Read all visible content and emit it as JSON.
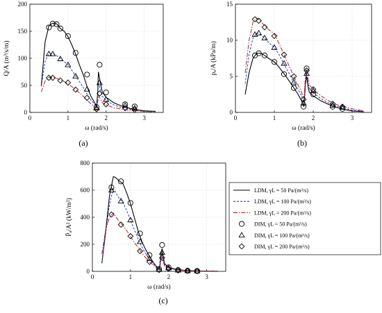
{
  "chart_data": [
    {
      "type": "line",
      "panel_label": "(a)",
      "xlabel": "ω (rad/s)",
      "ylabel": "Q/A (m³/s/m)",
      "xlim": [
        0,
        3.5
      ],
      "ylim": [
        0,
        200
      ],
      "xticks": [
        "0",
        "1",
        "2",
        "3"
      ],
      "yticks": [
        "0",
        "50",
        "100",
        "150",
        "200"
      ],
      "xtick_values": [
        0,
        1,
        2,
        3
      ],
      "ytick_values": [
        0,
        50,
        100,
        150,
        200
      ],
      "grid": "dotted",
      "series": [
        {
          "name": "LDM, γL = 50 Pa/(m³/s)",
          "style": "solid",
          "color": "#000000",
          "marker": "none",
          "x": [
            0.3,
            0.4,
            0.5,
            0.6,
            0.7,
            0.8,
            0.9,
            1.0,
            1.1,
            1.2,
            1.3,
            1.4,
            1.5,
            1.6,
            1.7,
            1.75,
            1.78,
            1.8,
            1.85,
            1.9,
            2.0,
            2.2,
            2.4,
            2.6,
            2.8,
            3.0,
            3.3
          ],
          "y": [
            50,
            130,
            160,
            165,
            164,
            155,
            150,
            140,
            125,
            108,
            88,
            70,
            48,
            30,
            18,
            12,
            35,
            75,
            55,
            38,
            28,
            18,
            12,
            8,
            5,
            3,
            2
          ]
        },
        {
          "name": "LDM, γL = 100 Pa/(m³/s)",
          "style": "dashed",
          "color": "#1f3fbf",
          "marker": "none",
          "x": [
            0.3,
            0.4,
            0.5,
            0.6,
            0.7,
            0.8,
            0.9,
            1.0,
            1.1,
            1.2,
            1.3,
            1.4,
            1.5,
            1.6,
            1.7,
            1.75,
            1.78,
            1.8,
            1.85,
            1.9,
            2.0,
            2.2,
            2.4,
            2.6,
            2.8,
            3.0,
            3.3
          ],
          "y": [
            48,
            95,
            108,
            109,
            105,
            100,
            94,
            88,
            78,
            68,
            57,
            46,
            34,
            23,
            15,
            10,
            30,
            55,
            42,
            30,
            22,
            14,
            9,
            6,
            4,
            2,
            1
          ]
        },
        {
          "name": "LDM, γL = 200 Pa/(m³/s)",
          "style": "dashdot",
          "color": "#b02020",
          "marker": "none",
          "x": [
            0.3,
            0.4,
            0.5,
            0.6,
            0.7,
            0.8,
            0.9,
            1.0,
            1.1,
            1.2,
            1.3,
            1.4,
            1.5,
            1.6,
            1.7,
            1.75,
            1.78,
            1.8,
            1.85,
            1.9,
            2.0,
            2.2,
            2.4,
            2.6,
            2.8,
            3.0,
            3.3
          ],
          "y": [
            38,
            58,
            65,
            65,
            63,
            60,
            57,
            53,
            48,
            42,
            36,
            30,
            23,
            16,
            11,
            8,
            18,
            32,
            25,
            18,
            14,
            9,
            6,
            4,
            3,
            2,
            1
          ]
        },
        {
          "name": "DIM, γL = 50 Pa/(m³/s)",
          "style": "none",
          "color": "#000000",
          "marker": "circle",
          "x": [
            0.5,
            0.6,
            0.7,
            0.8,
            1.0,
            1.2,
            1.5,
            1.75,
            1.83,
            2.0,
            2.5,
            2.75
          ],
          "y": [
            157,
            164,
            163,
            155,
            141,
            110,
            70,
            10,
            88,
            37,
            15,
            11
          ]
        },
        {
          "name": "DIM, γL = 100 Pa/(m³/s)",
          "style": "none",
          "color": "#000000",
          "marker": "triangle",
          "x": [
            0.5,
            0.6,
            0.8,
            1.0,
            1.2,
            1.5,
            1.75,
            1.83,
            2.0,
            2.5,
            2.75
          ],
          "y": [
            108,
            108,
            99,
            88,
            67,
            43,
            8,
            55,
            24,
            13,
            8
          ]
        },
        {
          "name": "DIM, γL = 200 Pa/(m³/s)",
          "style": "none",
          "color": "#000000",
          "marker": "diamond",
          "x": [
            0.5,
            0.6,
            0.8,
            1.0,
            1.2,
            1.5,
            1.75,
            1.83,
            2.0,
            2.5,
            2.75
          ],
          "y": [
            64,
            64,
            59,
            55,
            42,
            27,
            6,
            35,
            15,
            8,
            5
          ]
        }
      ]
    },
    {
      "type": "line",
      "panel_label": "(b)",
      "xlabel": "ω (rad/s)",
      "ylabel": "pₐ/A (kPa/m)",
      "xlim": [
        0,
        3.5
      ],
      "ylim": [
        0,
        15
      ],
      "xticks": [
        "0",
        "1",
        "2",
        "3"
      ],
      "yticks": [
        "0",
        "5",
        "10",
        "15"
      ],
      "xtick_values": [
        0,
        1,
        2,
        3
      ],
      "ytick_values": [
        0,
        5,
        10,
        15
      ],
      "grid": "dotted",
      "series": [
        {
          "name": "LDM, γL = 50 Pa/(m³/s)",
          "style": "solid",
          "color": "#000000",
          "marker": "none",
          "x": [
            0.25,
            0.35,
            0.45,
            0.55,
            0.65,
            0.75,
            0.85,
            1.0,
            1.1,
            1.2,
            1.3,
            1.4,
            1.5,
            1.6,
            1.7,
            1.76,
            1.8,
            1.83,
            1.87,
            1.9,
            2.0,
            2.2,
            2.4,
            2.6,
            2.8,
            3.0,
            3.3
          ],
          "y": [
            2.5,
            5.5,
            7.5,
            8.2,
            8.2,
            7.9,
            7.5,
            7.0,
            6.4,
            5.7,
            5.0,
            4.2,
            3.4,
            2.6,
            1.6,
            0.8,
            4.0,
            5.0,
            3.5,
            2.8,
            2.3,
            1.6,
            1.1,
            0.7,
            0.4,
            0.2,
            0.1
          ]
        },
        {
          "name": "LDM, γL = 100 Pa/(m³/s)",
          "style": "dashed",
          "color": "#1f3fbf",
          "marker": "none",
          "x": [
            0.25,
            0.35,
            0.45,
            0.55,
            0.65,
            0.75,
            0.85,
            1.0,
            1.1,
            1.2,
            1.3,
            1.4,
            1.5,
            1.6,
            1.7,
            1.76,
            1.8,
            1.83,
            1.87,
            1.9,
            2.0,
            2.2,
            2.4,
            2.6,
            2.8,
            3.0,
            3.3
          ],
          "y": [
            4.0,
            8.0,
            10.3,
            11.0,
            10.8,
            10.3,
            9.7,
            9.0,
            8.2,
            7.2,
            6.2,
            5.2,
            4.2,
            3.3,
            2.3,
            1.3,
            4.5,
            5.5,
            4.0,
            3.3,
            2.7,
            1.9,
            1.3,
            0.9,
            0.6,
            0.3,
            0.2
          ]
        },
        {
          "name": "LDM, γL = 200 Pa/(m³/s)",
          "style": "dashdot",
          "color": "#b02020",
          "marker": "none",
          "x": [
            0.25,
            0.35,
            0.45,
            0.55,
            0.65,
            0.75,
            0.85,
            1.0,
            1.1,
            1.2,
            1.3,
            1.4,
            1.5,
            1.6,
            1.7,
            1.76,
            1.8,
            1.83,
            1.87,
            1.9,
            2.0,
            2.2,
            2.4,
            2.6,
            2.8,
            3.0,
            3.3
          ],
          "y": [
            5.5,
            10.0,
            12.5,
            13.1,
            12.6,
            12.0,
            11.5,
            10.9,
            9.8,
            8.6,
            7.4,
            6.2,
            5.0,
            3.9,
            2.8,
            1.8,
            5.0,
            6.0,
            4.6,
            3.8,
            3.2,
            2.3,
            1.6,
            1.1,
            0.8,
            0.5,
            0.2
          ]
        },
        {
          "name": "DIM, γL = 50 Pa/(m³/s)",
          "style": "none",
          "color": "#000000",
          "marker": "circle",
          "x": [
            0.5,
            0.6,
            0.75,
            1.0,
            1.25,
            1.5,
            1.75,
            1.83,
            2.0,
            2.5,
            2.75
          ],
          "y": [
            7.9,
            8.2,
            7.9,
            7.0,
            5.3,
            3.4,
            0.8,
            6.1,
            2.5,
            0.8,
            0.5
          ]
        },
        {
          "name": "DIM, γL = 100 Pa/(m³/s)",
          "style": "none",
          "color": "#000000",
          "marker": "triangle",
          "x": [
            0.5,
            0.6,
            0.75,
            1.0,
            1.25,
            1.5,
            1.75,
            1.83,
            2.0,
            2.5,
            2.75
          ],
          "y": [
            10.8,
            11.0,
            10.3,
            9.0,
            6.8,
            4.2,
            1.3,
            5.4,
            3.0,
            1.0,
            0.7
          ]
        },
        {
          "name": "DIM, γL = 200 Pa/(m³/s)",
          "style": "none",
          "color": "#000000",
          "marker": "diamond",
          "x": [
            0.5,
            0.6,
            0.75,
            1.0,
            1.25,
            1.5,
            1.75,
            1.83,
            2.0,
            2.5,
            2.75
          ],
          "y": [
            12.9,
            12.7,
            11.8,
            10.6,
            8.0,
            5.0,
            1.8,
            5.8,
            3.2,
            1.2,
            0.8
          ]
        }
      ]
    },
    {
      "type": "line",
      "panel_label": "(c)",
      "xlabel": "ω (rad/s)",
      "ylabel": "P̄ₐ/A² (kW/m²)",
      "xlim": [
        0,
        3.5
      ],
      "ylim": [
        0,
        800
      ],
      "xticks": [
        "0",
        "1",
        "2",
        "3"
      ],
      "yticks": [
        "0",
        "200",
        "400",
        "600",
        "800"
      ],
      "xtick_values": [
        0,
        1,
        2,
        3
      ],
      "ytick_values": [
        0,
        200,
        400,
        600,
        800
      ],
      "grid": "dotted",
      "legend": "right",
      "series": [
        {
          "name": "LDM, γL = 50 Pa/(m³/s)",
          "style": "solid",
          "color": "#000000",
          "marker": "none",
          "x": [
            0.25,
            0.35,
            0.45,
            0.55,
            0.6,
            0.7,
            0.8,
            0.9,
            1.0,
            1.1,
            1.2,
            1.3,
            1.4,
            1.5,
            1.6,
            1.7,
            1.76,
            1.8,
            1.83,
            1.87,
            1.9,
            2.0,
            2.2,
            2.4,
            2.6,
            2.8,
            3.0,
            3.3
          ],
          "y": [
            60,
            300,
            560,
            700,
            695,
            670,
            650,
            580,
            500,
            400,
            300,
            220,
            160,
            110,
            65,
            30,
            10,
            130,
            170,
            90,
            55,
            30,
            15,
            8,
            5,
            3,
            2,
            1
          ]
        },
        {
          "name": "LDM, γL = 100 Pa/(m³/s)",
          "style": "dashed",
          "color": "#1f3fbf",
          "marker": "none",
          "x": [
            0.25,
            0.35,
            0.45,
            0.55,
            0.6,
            0.7,
            0.8,
            0.9,
            1.0,
            1.1,
            1.2,
            1.3,
            1.4,
            1.5,
            1.6,
            1.7,
            1.76,
            1.8,
            1.83,
            1.87,
            1.9,
            2.0,
            2.2,
            2.4,
            2.6,
            2.8,
            3.0,
            3.3
          ],
          "y": [
            70,
            280,
            500,
            610,
            590,
            540,
            510,
            450,
            380,
            310,
            240,
            180,
            130,
            90,
            55,
            25,
            8,
            100,
            140,
            75,
            45,
            25,
            12,
            7,
            4,
            3,
            2,
            1
          ]
        },
        {
          "name": "LDM, γL = 200 Pa/(m³/s)",
          "style": "dashdot",
          "color": "#b02020",
          "marker": "none",
          "x": [
            0.25,
            0.35,
            0.45,
            0.55,
            0.6,
            0.7,
            0.8,
            0.9,
            1.0,
            1.1,
            1.2,
            1.3,
            1.4,
            1.5,
            1.6,
            1.7,
            1.76,
            1.8,
            1.83,
            1.87,
            1.9,
            2.0,
            2.2,
            2.4,
            2.6,
            2.8,
            3.0,
            3.3
          ],
          "y": [
            130,
            310,
            400,
            430,
            410,
            370,
            340,
            300,
            260,
            215,
            175,
            135,
            100,
            70,
            45,
            22,
            8,
            80,
            105,
            60,
            38,
            22,
            11,
            6,
            4,
            2,
            1,
            1
          ]
        },
        {
          "name": "DIM, γL = 50 Pa/(m³/s)",
          "style": "none",
          "color": "#000000",
          "marker": "circle",
          "x": [
            0.5,
            0.75,
            1.0,
            1.25,
            1.5,
            1.75,
            1.83,
            2.0,
            2.25,
            2.5,
            2.75
          ],
          "y": [
            620,
            665,
            505,
            280,
            120,
            18,
            195,
            30,
            10,
            5,
            3
          ]
        },
        {
          "name": "DIM, γL = 100 Pa/(m³/s)",
          "style": "none",
          "color": "#000000",
          "marker": "triangle",
          "x": [
            0.5,
            0.75,
            1.0,
            1.25,
            1.5,
            1.75,
            1.83,
            2.0,
            2.25,
            2.5,
            2.75
          ],
          "y": [
            600,
            520,
            380,
            220,
            95,
            14,
            140,
            25,
            9,
            5,
            3
          ]
        },
        {
          "name": "DIM, γL = 200 Pa/(m³/s)",
          "style": "none",
          "color": "#000000",
          "marker": "diamond",
          "x": [
            0.5,
            0.75,
            1.0,
            1.25,
            1.5,
            1.75,
            1.83,
            2.0,
            2.25,
            2.5,
            2.75
          ],
          "y": [
            420,
            345,
            260,
            150,
            70,
            10,
            100,
            18,
            7,
            4,
            2
          ]
        }
      ]
    }
  ]
}
